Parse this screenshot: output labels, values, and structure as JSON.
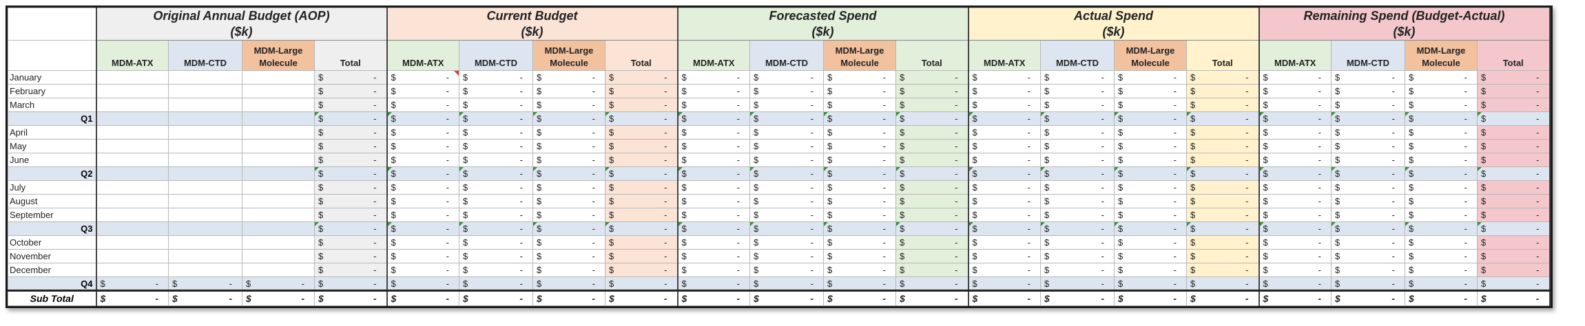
{
  "sections": [
    {
      "key": "aop",
      "title_line1": "Original Annual Budget (AOP)",
      "title_line2": "($k)",
      "header_bg": "#efefef",
      "total_bg": "#efefef"
    },
    {
      "key": "current",
      "title_line1": "Current Budget",
      "title_line2": "($k)",
      "header_bg": "#fbe3d6",
      "total_bg": "#fbe3d6"
    },
    {
      "key": "forecast",
      "title_line1": "Forecasted Spend",
      "title_line2": "($k)",
      "header_bg": "#e2efda",
      "total_bg": "#e2efda"
    },
    {
      "key": "actual",
      "title_line1": "Actual Spend",
      "title_line2": "($k)",
      "header_bg": "#fff2cc",
      "total_bg": "#fff2cc"
    },
    {
      "key": "remaining",
      "title_line1": "Remaining Spend (Budget-Actual)",
      "title_line2": "($k)",
      "header_bg": "#f4c7cc",
      "total_bg": "#f4c7cc"
    }
  ],
  "columns": [
    {
      "label": "MDM-ATX",
      "bg": "#e2efda"
    },
    {
      "label": "MDM-CTD",
      "bg": "#dde6f0"
    },
    {
      "label": "MDM-Large Molecule",
      "bg": "#f2c19e"
    },
    {
      "label": "Total",
      "bg": "#ffffff"
    }
  ],
  "rows": [
    {
      "label": "January",
      "type": "month"
    },
    {
      "label": "February",
      "type": "month"
    },
    {
      "label": "March",
      "type": "month"
    },
    {
      "label": "Q1",
      "type": "quarter"
    },
    {
      "label": "April",
      "type": "month"
    },
    {
      "label": "May",
      "type": "month"
    },
    {
      "label": "June",
      "type": "month"
    },
    {
      "label": "Q2",
      "type": "quarter"
    },
    {
      "label": "July",
      "type": "month"
    },
    {
      "label": "August",
      "type": "month"
    },
    {
      "label": "September",
      "type": "month"
    },
    {
      "label": "Q3",
      "type": "quarter"
    },
    {
      "label": "October",
      "type": "month"
    },
    {
      "label": "November",
      "type": "month"
    },
    {
      "label": "December",
      "type": "month"
    },
    {
      "label": "Q4",
      "type": "quarter"
    }
  ],
  "subtotal": {
    "label": "Sub Total",
    "currency": "$",
    "value": "-"
  },
  "cell": {
    "currency": "$",
    "value": "-"
  },
  "colors": {
    "quarter_row": "#dde6f0",
    "grid": "#b7b7b7",
    "frame": "#1a1a1a",
    "note_marker": "#3f8f3f",
    "comment_marker": "#e03b2f"
  }
}
